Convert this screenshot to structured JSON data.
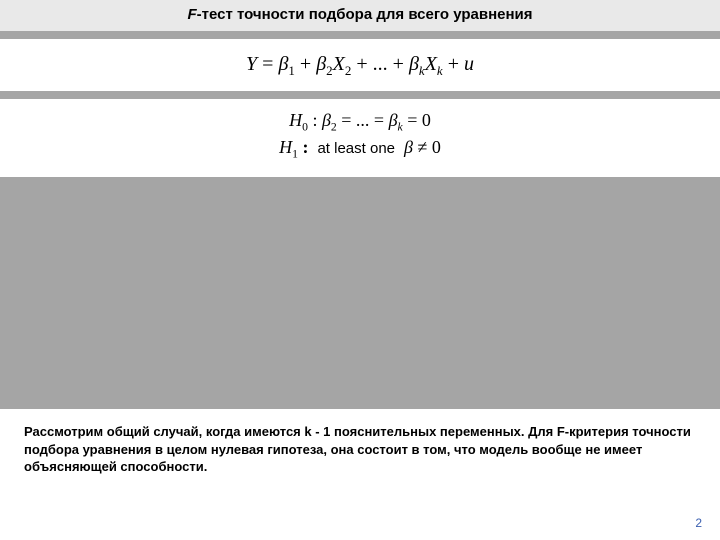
{
  "title": {
    "fprefix": "F",
    "rest": "-тест точности подбора для всего уравнения"
  },
  "equation": {
    "lhs_Y": "Y",
    "eq": " = ",
    "b": "β",
    "X": "X",
    "plus": " + ",
    "dots": "... ",
    "u": "u",
    "idx1": "1",
    "idx2": "2",
    "idxk": "k"
  },
  "hyp": {
    "H": "H",
    "idx0": "0",
    "idx1": "1",
    "colon": " : ",
    "b": "β",
    "idx2": "2",
    "idxk": "k",
    "eq": " = ",
    "dots": "... ",
    "zero": "0",
    "phrase": "at least one",
    "ne": " ≠ 0"
  },
  "footer": "Рассмотрим общий случай, когда имеются k - 1 пояснительных переменных. Для F-критерия точности подбора уравнения в целом нулевая гипотеза, она состоит в том, что модель вообще не имеет объясняющей способности.",
  "pagenum": "2",
  "colors": {
    "title_bg": "#e9e9e9",
    "bar": "#a5a5a5",
    "pagenum": "#3a5fb0"
  }
}
